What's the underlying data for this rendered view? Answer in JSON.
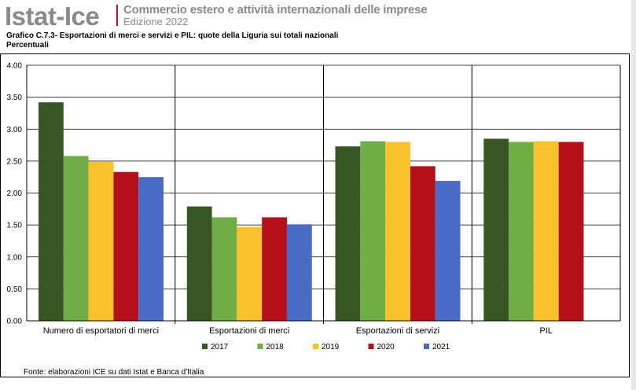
{
  "header": {
    "brand": "Istat-Ice",
    "subtitle": "Commercio estero e attività internazionali delle imprese",
    "edition": "Edizione 2022"
  },
  "chart_title": "Grafico C.7.3- Esportazioni di merci e servizi e PIL: quote della Liguria sui totali nazionali",
  "chart_unit": "Percentuali",
  "source": "Fonte: elaborazioni ICE su dati Istat e Banca d'Italia",
  "chart_data": {
    "type": "bar",
    "title": "Grafico C.7.3- Esportazioni di merci e servizi e PIL: quote della Liguria sui totali nazionali",
    "ylabel": "",
    "xlabel": "",
    "ylim": [
      0,
      4
    ],
    "yticks": [
      "0.00",
      "0.50",
      "1.00",
      "1.50",
      "2.00",
      "2.50",
      "3.00",
      "3.50",
      "4.00"
    ],
    "grid": true,
    "legend_position": "bottom",
    "categories": [
      "Numero di esportatori di merci",
      "Esportazioni di merci",
      "Esportazioni di servizi",
      "PIL"
    ],
    "series": [
      {
        "name": "2017",
        "color": "#375623",
        "values": [
          3.42,
          1.79,
          2.73,
          2.85
        ]
      },
      {
        "name": "2018",
        "color": "#70ad47",
        "values": [
          2.58,
          1.62,
          2.81,
          2.8
        ]
      },
      {
        "name": "2019",
        "color": "#f9c12b",
        "values": [
          2.49,
          1.47,
          2.8,
          2.81
        ]
      },
      {
        "name": "2020",
        "color": "#b50f19",
        "values": [
          2.33,
          1.62,
          2.42,
          2.8
        ]
      },
      {
        "name": "2021",
        "color": "#4a6cc7",
        "values": [
          2.25,
          1.51,
          2.19,
          null
        ]
      }
    ]
  }
}
